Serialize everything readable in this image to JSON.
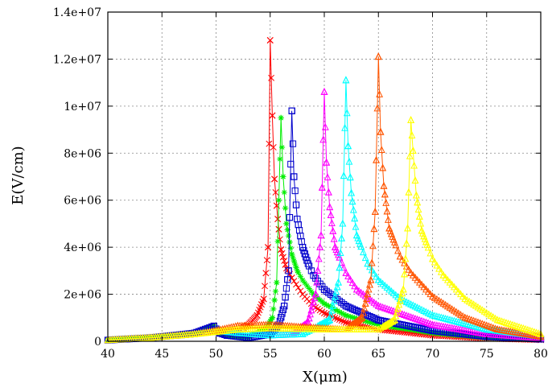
{
  "chart_data": {
    "type": "scatter",
    "title": "",
    "xlabel": "X(μm)",
    "ylabel": "E(V/cm)",
    "xlim": [
      40,
      80
    ],
    "ylim": [
      0,
      14000000
    ],
    "xticks": [
      40,
      45,
      50,
      55,
      60,
      65,
      70,
      75,
      80
    ],
    "xtick_labels": [
      "40",
      "45",
      "50",
      "55",
      "60",
      "65",
      "70",
      "75",
      "80"
    ],
    "yticks": [
      0,
      2000000,
      4000000,
      6000000,
      8000000,
      10000000,
      12000000,
      14000000
    ],
    "ytick_labels": [
      "0",
      "2e+06",
      "4e+06",
      "6e+06",
      "8e+06",
      "1e+07",
      "1.2e+07",
      "1.4e+07"
    ],
    "grid": true,
    "legend": "none",
    "series": [
      {
        "color": "#ff0000",
        "marker": "x",
        "peak_x": 55,
        "peak_y": 12800000,
        "x": [
          40,
          44,
          48,
          49.8,
          50.3,
          51,
          52,
          53,
          53.8,
          54.4,
          54.8,
          55,
          55.2,
          55.4,
          55.7,
          56,
          56.5,
          57,
          58,
          59,
          60,
          62,
          65,
          70,
          75,
          80
        ],
        "y": [
          50000,
          150000,
          350000,
          650000,
          350000,
          300000,
          450000,
          700000,
          1100000,
          1800000,
          4000000,
          12800000,
          9600000,
          6900000,
          5200000,
          3900000,
          3100000,
          2700000,
          2000000,
          1500000,
          1200000,
          800000,
          500000,
          250000,
          120000,
          60000
        ]
      },
      {
        "color": "#00ee00",
        "marker": "asterisk",
        "peak_x": 56,
        "peak_y": 9500000,
        "x": [
          40,
          44,
          48,
          49.8,
          50.3,
          51,
          53,
          54.5,
          55.2,
          55.6,
          56,
          56.2,
          56.5,
          57,
          57.5,
          58,
          59,
          60,
          62,
          65,
          70,
          75,
          80
        ],
        "y": [
          50000,
          150000,
          350000,
          650000,
          350000,
          250000,
          200000,
          500000,
          1000000,
          2500000,
          9500000,
          7000000,
          5000000,
          3700000,
          3000000,
          2600000,
          2000000,
          1600000,
          1100000,
          700000,
          350000,
          150000,
          70000
        ]
      },
      {
        "color": "#0000cc",
        "marker": "square",
        "peak_x": 57,
        "peak_y": 9800000,
        "x": [
          40,
          44,
          48,
          49.8,
          50.3,
          51,
          53,
          55,
          55.8,
          56.3,
          56.7,
          57,
          57.2,
          57.5,
          58,
          58.5,
          59,
          60,
          62,
          65,
          70,
          75,
          80
        ],
        "y": [
          50000,
          150000,
          350000,
          650000,
          350000,
          250000,
          150000,
          300000,
          700000,
          1500000,
          3000000,
          9800000,
          7000000,
          5200000,
          4000000,
          3300000,
          2800000,
          2200000,
          1500000,
          900000,
          450000,
          200000,
          90000
        ]
      },
      {
        "color": "#ff00ff",
        "marker": "triangle",
        "peak_x": 60,
        "peak_y": 10600000,
        "x": [
          40,
          44,
          48,
          50,
          52,
          55,
          57,
          58.5,
          59.2,
          59.7,
          60,
          60.2,
          60.5,
          61,
          62,
          63,
          65,
          70,
          75,
          80
        ],
        "y": [
          50000,
          150000,
          300000,
          450000,
          350000,
          250000,
          300000,
          800000,
          2000000,
          4500000,
          10600000,
          7600000,
          5700000,
          4000000,
          2900000,
          2200000,
          1500000,
          700000,
          300000,
          130000
        ]
      },
      {
        "color": "#00ffff",
        "marker": "triangle",
        "peak_x": 62,
        "peak_y": 11100000,
        "x": [
          40,
          44,
          48,
          50,
          52,
          55,
          58,
          60.5,
          61.3,
          61.7,
          62,
          62.2,
          62.5,
          63,
          64,
          65,
          67,
          70,
          75,
          80
        ],
        "y": [
          50000,
          150000,
          300000,
          450000,
          350000,
          250000,
          300000,
          900000,
          2500000,
          5000000,
          11100000,
          8300000,
          6300000,
          4500000,
          3300000,
          2600000,
          1800000,
          1100000,
          500000,
          200000
        ]
      },
      {
        "color": "#ff5500",
        "marker": "triangle",
        "peak_x": 65,
        "peak_y": 12100000,
        "x": [
          40,
          44,
          48,
          50,
          52,
          55,
          58,
          62,
          63.5,
          64.3,
          64.7,
          65,
          65.2,
          65.5,
          66,
          67,
          68,
          70,
          73,
          76,
          80
        ],
        "y": [
          50000,
          150000,
          300000,
          450000,
          650000,
          700000,
          600000,
          500000,
          1000000,
          2600000,
          5500000,
          12100000,
          8900000,
          6600000,
          4800000,
          3600000,
          2900000,
          1900000,
          1000000,
          500000,
          200000
        ]
      },
      {
        "color": "#ffff00",
        "marker": "triangle",
        "peak_x": 68,
        "peak_y": 9400000,
        "x": [
          40,
          44,
          48,
          50,
          52,
          55,
          60,
          65,
          66.5,
          67.3,
          67.7,
          68,
          68.2,
          68.5,
          69,
          70,
          71,
          73,
          76,
          80
        ],
        "y": [
          50000,
          150000,
          300000,
          400000,
          500000,
          550000,
          500000,
          500000,
          900000,
          2200000,
          4800000,
          9400000,
          8100000,
          6200000,
          4700000,
          3500000,
          2800000,
          1800000,
          900000,
          300000
        ]
      }
    ]
  }
}
